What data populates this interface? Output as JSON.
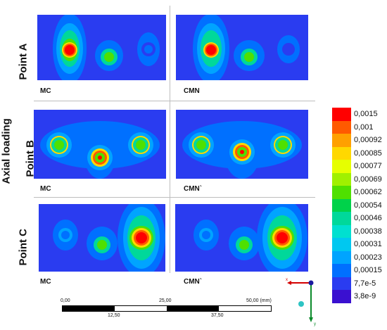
{
  "rows": [
    {
      "label": "Point A",
      "panels": [
        "MC",
        "CMN"
      ]
    },
    {
      "label": "Point B",
      "panels": [
        "MC",
        "CMN`"
      ]
    },
    {
      "label": "Point C",
      "panels": [
        "MC",
        "CMN`"
      ]
    }
  ],
  "side_label": "Axial loading",
  "legend": {
    "values": [
      "0,0015",
      "0,001",
      "0,00092",
      "0,00085",
      "0,00077",
      "0,00069",
      "0,00062",
      "0,00054",
      "0,00046",
      "0,00038",
      "0,00031",
      "0,00023",
      "0,00015",
      "7,7e-5",
      "3,8e-9"
    ],
    "colors": [
      "#ff0000",
      "#ff5a00",
      "#ffa000",
      "#ffd800",
      "#e6ff00",
      "#a0f000",
      "#4fe000",
      "#00d24a",
      "#00d89a",
      "#00e0d0",
      "#00c8f0",
      "#00a4ff",
      "#0070ff",
      "#2a3cf0",
      "#3a10d0"
    ]
  },
  "scale": {
    "top": [
      "0,00",
      "25,00",
      "50,00 (mm)"
    ],
    "bottom": [
      "12,50",
      "37,50"
    ]
  },
  "axes": {
    "x": "x",
    "y": "y"
  }
}
